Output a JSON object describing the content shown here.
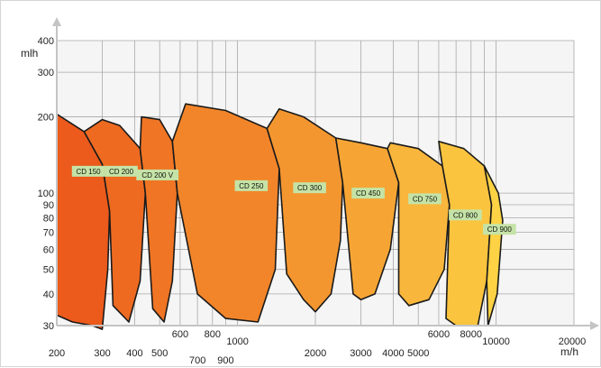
{
  "chart_data": {
    "type": "area",
    "title": "",
    "xlabel": "m/h",
    "ylabel": "mlh",
    "x_scale": "log",
    "y_scale": "log",
    "xlim": [
      200,
      20000
    ],
    "ylim": [
      30,
      400
    ],
    "grid": true,
    "x_ticks": [
      {
        "value": 200,
        "label": "200",
        "row": "low"
      },
      {
        "value": 300,
        "label": "300",
        "row": "low"
      },
      {
        "value": 400,
        "label": "400",
        "row": "low"
      },
      {
        "value": 500,
        "label": "500",
        "row": "low"
      },
      {
        "value": 600,
        "label": "600",
        "row": "high"
      },
      {
        "value": 700,
        "label": "700",
        "row": "lowest"
      },
      {
        "value": 800,
        "label": "800",
        "row": "high"
      },
      {
        "value": 900,
        "label": "900",
        "row": "lowest"
      },
      {
        "value": 1000,
        "label": "1000",
        "row": "mid"
      },
      {
        "value": 2000,
        "label": "2000",
        "row": "low"
      },
      {
        "value": 3000,
        "label": "3000",
        "row": "low"
      },
      {
        "value": 4000,
        "label": "4000",
        "row": "low"
      },
      {
        "value": 5000,
        "label": "5000",
        "row": "low"
      },
      {
        "value": 6000,
        "label": "6000",
        "row": "high"
      },
      {
        "value": 8000,
        "label": "8000",
        "row": "high"
      },
      {
        "value": 10000,
        "label": "10000",
        "row": "mid"
      },
      {
        "value": 20000,
        "label": "20000",
        "row": "mid"
      }
    ],
    "y_ticks": [
      {
        "value": 30,
        "label": "30"
      },
      {
        "value": 40,
        "label": "40"
      },
      {
        "value": 50,
        "label": "50"
      },
      {
        "value": 60,
        "label": "60"
      },
      {
        "value": 70,
        "label": "70"
      },
      {
        "value": 80,
        "label": "80"
      },
      {
        "value": 90,
        "label": "90"
      },
      {
        "value": 100,
        "label": "100"
      },
      {
        "value": 200,
        "label": "200"
      },
      {
        "value": 300,
        "label": "300"
      },
      {
        "value": 400,
        "label": "400"
      }
    ],
    "x_grid_lines": [
      200,
      300,
      400,
      500,
      600,
      700,
      800,
      900,
      1000,
      2000,
      3000,
      4000,
      5000,
      6000,
      7000,
      8000,
      9000,
      10000,
      20000
    ],
    "y_grid_lines": [
      30,
      40,
      50,
      60,
      70,
      80,
      90,
      100,
      200,
      300,
      400
    ],
    "series": [
      {
        "name": "CD 150",
        "color": "#ec5a1c",
        "outline": [
          [
            200,
            205
          ],
          [
            255,
            175
          ],
          [
            300,
            130
          ],
          [
            320,
            85
          ],
          [
            315,
            50
          ],
          [
            300,
            29
          ],
          [
            275,
            30
          ],
          [
            230,
            31
          ],
          [
            200,
            33
          ]
        ],
        "label_at": [
          265,
          122
        ]
      },
      {
        "name": "CD 200",
        "color": "#ee6a21",
        "outline": [
          [
            300,
            195
          ],
          [
            350,
            185
          ],
          [
            420,
            150
          ],
          [
            440,
            100
          ],
          [
            420,
            45
          ],
          [
            380,
            31
          ],
          [
            330,
            36
          ],
          [
            320,
            85
          ],
          [
            300,
            130
          ],
          [
            255,
            175
          ]
        ],
        "label_at": [
          355,
          122
        ]
      },
      {
        "name": "CD 200 V",
        "color": "#f07524",
        "outline": [
          [
            425,
            200
          ],
          [
            500,
            195
          ],
          [
            560,
            160
          ],
          [
            585,
            100
          ],
          [
            560,
            45
          ],
          [
            520,
            31
          ],
          [
            470,
            35
          ],
          [
            440,
            100
          ],
          [
            420,
            150
          ]
        ],
        "label_at": [
          490,
          118
        ]
      },
      {
        "name": "CD 250",
        "color": "#f2852a",
        "outline": [
          [
            630,
            225
          ],
          [
            900,
            212
          ],
          [
            1300,
            180
          ],
          [
            1450,
            125
          ],
          [
            1400,
            50
          ],
          [
            1200,
            31
          ],
          [
            900,
            32
          ],
          [
            700,
            40
          ],
          [
            585,
            100
          ],
          [
            560,
            160
          ]
        ],
        "label_at": [
          1130,
          107
        ]
      },
      {
        "name": "CD 300",
        "color": "#f4962f",
        "outline": [
          [
            1450,
            215
          ],
          [
            1800,
            200
          ],
          [
            2400,
            165
          ],
          [
            2550,
            110
          ],
          [
            2500,
            65
          ],
          [
            2300,
            40
          ],
          [
            2000,
            34
          ],
          [
            1800,
            38
          ],
          [
            1550,
            48
          ],
          [
            1450,
            125
          ],
          [
            1300,
            180
          ]
        ],
        "label_at": [
          1900,
          105
        ]
      },
      {
        "name": "CD 450",
        "color": "#f6a535",
        "outline": [
          [
            2400,
            165
          ],
          [
            3000,
            158
          ],
          [
            3800,
            150
          ],
          [
            4200,
            110
          ],
          [
            3900,
            60
          ],
          [
            3400,
            40
          ],
          [
            3000,
            38
          ],
          [
            2800,
            40
          ],
          [
            2550,
            110
          ]
        ],
        "label_at": [
          3200,
          100
        ]
      },
      {
        "name": "CD 750",
        "color": "#f9b63c",
        "outline": [
          [
            3900,
            158
          ],
          [
            5000,
            150
          ],
          [
            6200,
            128
          ],
          [
            6600,
            90
          ],
          [
            6300,
            50
          ],
          [
            5500,
            38
          ],
          [
            4600,
            36
          ],
          [
            4200,
            40
          ],
          [
            4200,
            110
          ],
          [
            3800,
            150
          ]
        ],
        "label_at": [
          5300,
          95
        ]
      },
      {
        "name": "CD 800",
        "color": "#fbc43f",
        "outline": [
          [
            6000,
            160
          ],
          [
            7500,
            150
          ],
          [
            9000,
            128
          ],
          [
            9600,
            90
          ],
          [
            9200,
            45
          ],
          [
            8500,
            30
          ],
          [
            7000,
            30
          ],
          [
            6400,
            32
          ],
          [
            6600,
            90
          ],
          [
            6200,
            128
          ]
        ],
        "label_at": [
          7600,
          82
        ]
      },
      {
        "name": "CD 900",
        "color": "#fdd244",
        "outline": [
          [
            9000,
            128
          ],
          [
            10200,
            100
          ],
          [
            10600,
            78
          ],
          [
            10100,
            40
          ],
          [
            9300,
            30
          ],
          [
            9200,
            45
          ],
          [
            9600,
            90
          ]
        ],
        "label_at": [
          10300,
          72
        ]
      }
    ]
  }
}
